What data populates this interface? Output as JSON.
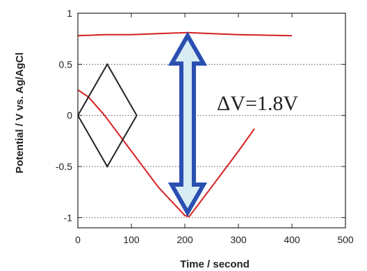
{
  "chart_data": {
    "type": "line",
    "title": "",
    "xlabel": "Time  /  second",
    "ylabel": "Potential  /  V vs. Ag/AgCl",
    "xlim": [
      0,
      500
    ],
    "ylim": [
      -1.1,
      1
    ],
    "x_ticks": [
      "0",
      "100",
      "200",
      "300",
      "400",
      "500"
    ],
    "y_ticks": [
      "1",
      "0.5",
      "0",
      "-0.5",
      "-1"
    ],
    "grid": "horizontal dotted",
    "annotation": "ΔV=1.8V",
    "colors": {
      "series": "#d42020",
      "diamond": "#222222",
      "arrow": "#2a4fb0",
      "arrow_fill": "#d8ecf4"
    },
    "series": [
      {
        "x": [
          0,
          50,
          100,
          150,
          200,
          208,
          250,
          300,
          400
        ],
        "y": [
          0.78,
          0.79,
          0.79,
          0.8,
          0.81,
          0.81,
          0.8,
          0.79,
          0.78
        ]
      },
      {
        "x": [
          0,
          20,
          50,
          100,
          150,
          200,
          208,
          250,
          300,
          330
        ],
        "y": [
          0.25,
          0.18,
          0.0,
          -0.35,
          -0.7,
          -0.98,
          -0.99,
          -0.7,
          -0.35,
          -0.13
        ]
      }
    ],
    "diamond": {
      "x": [
        0,
        55,
        110,
        55,
        0
      ],
      "y": [
        0,
        0.5,
        0,
        -0.5,
        0
      ]
    },
    "arrow": {
      "x": 205,
      "y_top": 0.78,
      "y_bottom": -0.95
    }
  }
}
